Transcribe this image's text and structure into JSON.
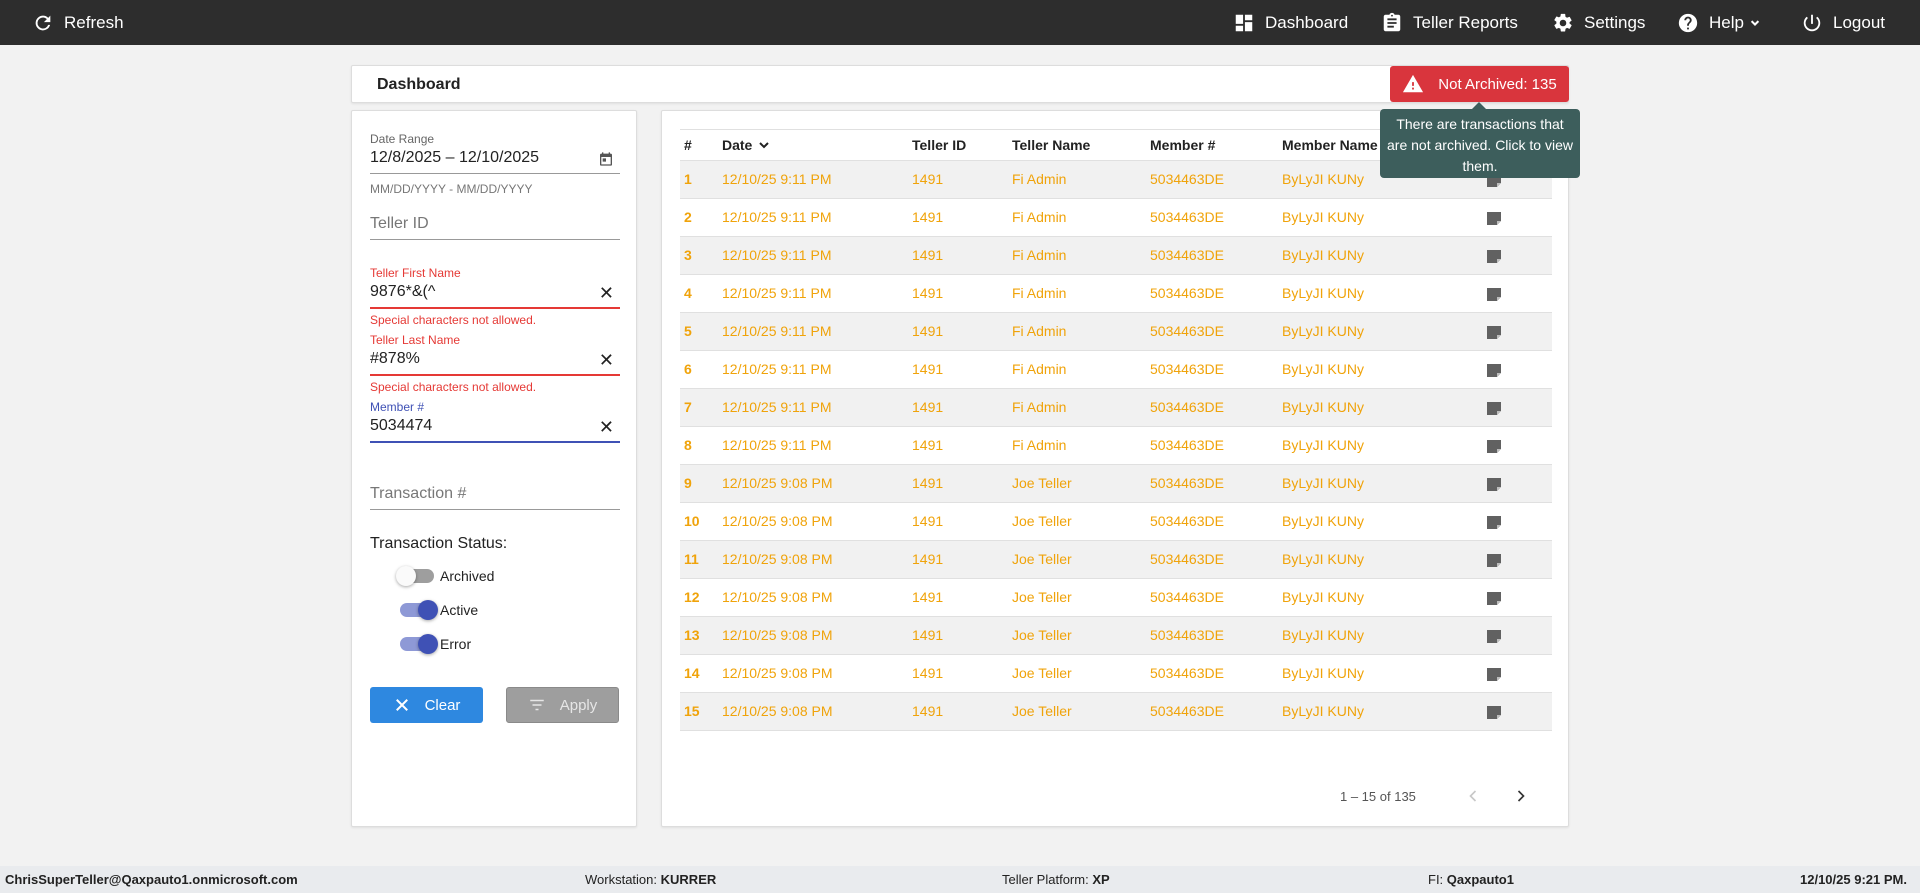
{
  "topbar": {
    "refresh_label": "Refresh",
    "dashboard_label": "Dashboard",
    "teller_reports_label": "Teller Reports",
    "settings_label": "Settings",
    "help_label": "Help",
    "logout_label": "Logout"
  },
  "header": {
    "title": "Dashboard",
    "not_archived_label": "Not Archived: 135",
    "tooltip": "There are transactions that are not archived. Click to view them."
  },
  "filters": {
    "date_range": {
      "label": "Date Range",
      "value": "12/8/2025 – 12/10/2025",
      "hint": "MM/DD/YYYY - MM/DD/YYYY"
    },
    "teller_id": {
      "placeholder": "Teller ID"
    },
    "teller_first_name": {
      "label": "Teller First Name",
      "value": "9876*&(^",
      "error": "Special characters not allowed."
    },
    "teller_last_name": {
      "label": "Teller Last Name",
      "value": "#878%",
      "error": "Special characters not allowed."
    },
    "member_number": {
      "label": "Member #",
      "value": "5034474"
    },
    "transaction_number": {
      "placeholder": "Transaction #"
    },
    "transaction_status": {
      "label": "Transaction Status:",
      "archived": {
        "label": "Archived",
        "on": false
      },
      "active": {
        "label": "Active",
        "on": true
      },
      "error": {
        "label": "Error",
        "on": true
      }
    },
    "clear_label": "Clear",
    "apply_label": "Apply"
  },
  "table": {
    "columns": [
      "#",
      "Date",
      "Teller ID",
      "Teller Name",
      "Member #",
      "Member Name"
    ],
    "rows": [
      [
        "1",
        "12/10/25 9:11 PM",
        "1491",
        "Fi Admin",
        "5034463DE",
        "ByLyJI KUNy"
      ],
      [
        "2",
        "12/10/25 9:11 PM",
        "1491",
        "Fi Admin",
        "5034463DE",
        "ByLyJI KUNy"
      ],
      [
        "3",
        "12/10/25 9:11 PM",
        "1491",
        "Fi Admin",
        "5034463DE",
        "ByLyJI KUNy"
      ],
      [
        "4",
        "12/10/25 9:11 PM",
        "1491",
        "Fi Admin",
        "5034463DE",
        "ByLyJI KUNy"
      ],
      [
        "5",
        "12/10/25 9:11 PM",
        "1491",
        "Fi Admin",
        "5034463DE",
        "ByLyJI KUNy"
      ],
      [
        "6",
        "12/10/25 9:11 PM",
        "1491",
        "Fi Admin",
        "5034463DE",
        "ByLyJI KUNy"
      ],
      [
        "7",
        "12/10/25 9:11 PM",
        "1491",
        "Fi Admin",
        "5034463DE",
        "ByLyJI KUNy"
      ],
      [
        "8",
        "12/10/25 9:11 PM",
        "1491",
        "Fi Admin",
        "5034463DE",
        "ByLyJI KUNy"
      ],
      [
        "9",
        "12/10/25 9:08 PM",
        "1491",
        "Joe Teller",
        "5034463DE",
        "ByLyJI KUNy"
      ],
      [
        "10",
        "12/10/25 9:08 PM",
        "1491",
        "Joe Teller",
        "5034463DE",
        "ByLyJI KUNy"
      ],
      [
        "11",
        "12/10/25 9:08 PM",
        "1491",
        "Joe Teller",
        "5034463DE",
        "ByLyJI KUNy"
      ],
      [
        "12",
        "12/10/25 9:08 PM",
        "1491",
        "Joe Teller",
        "5034463DE",
        "ByLyJI KUNy"
      ],
      [
        "13",
        "12/10/25 9:08 PM",
        "1491",
        "Joe Teller",
        "5034463DE",
        "ByLyJI KUNy"
      ],
      [
        "14",
        "12/10/25 9:08 PM",
        "1491",
        "Joe Teller",
        "5034463DE",
        "ByLyJI KUNy"
      ],
      [
        "15",
        "12/10/25 9:08 PM",
        "1491",
        "Joe Teller",
        "5034463DE",
        "ByLyJI KUNy"
      ]
    ],
    "row_color": "#f0a30a",
    "pagination": "1 – 15 of 135"
  },
  "footer": {
    "user": "ChrisSuperTeller@Qaxpauto1.onmicrosoft.com",
    "workstation_label": "Workstation:",
    "workstation_value": "KURRER",
    "platform_label": "Teller Platform:",
    "platform_value": "XP",
    "fi_label": "FI:",
    "fi_value": "Qaxpauto1",
    "datetime": "12/10/25 9:21 PM."
  }
}
